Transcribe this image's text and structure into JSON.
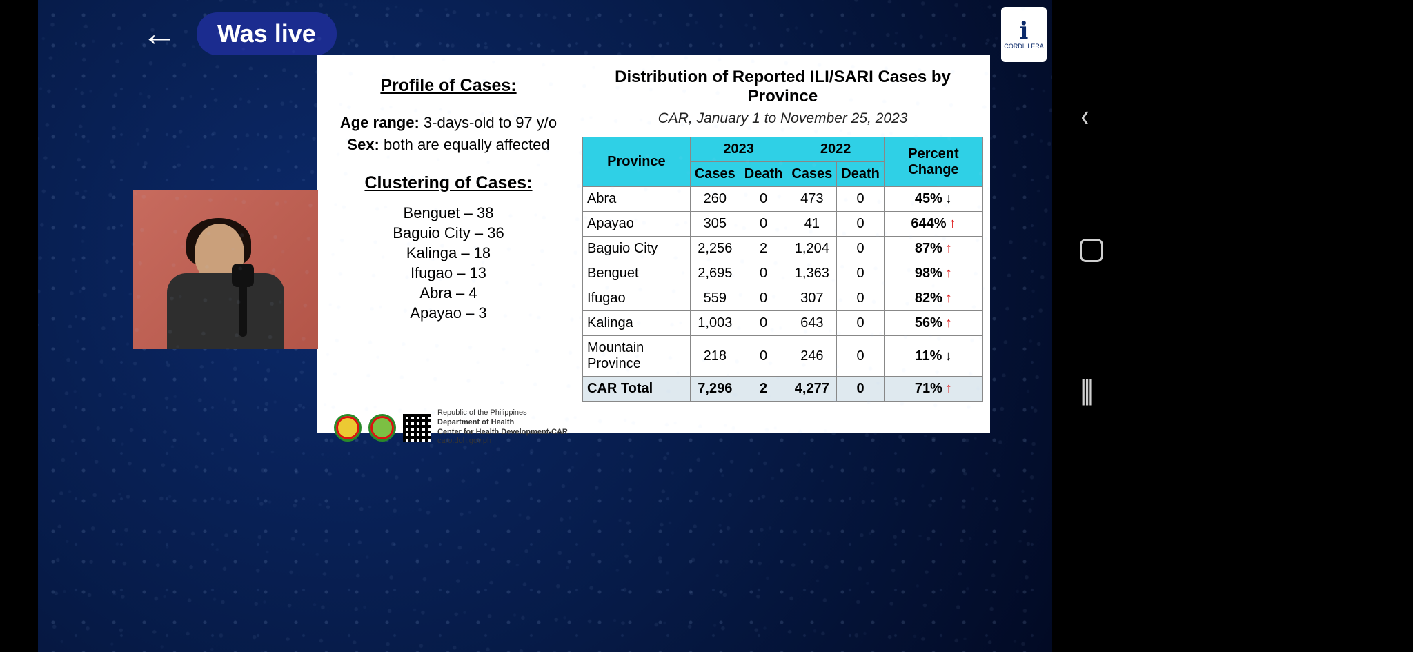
{
  "nav": {
    "live_label": "Was live"
  },
  "logo": {
    "label": "CORDILLERA"
  },
  "slide": {
    "profile": {
      "heading": "Profile of Cases:",
      "age_label": "Age range:",
      "age_value": "3-days-old to 97 y/o",
      "sex_label": "Sex:",
      "sex_value": "both are equally affected"
    },
    "clustering": {
      "heading": "Clustering of Cases:",
      "items": [
        "Benguet – 38",
        "Baguio City – 36",
        "Kalinga – 18",
        "Ifugao – 13",
        "Abra – 4",
        "Apayao – 3"
      ]
    },
    "distribution": {
      "title": "Distribution of Reported ILI/SARI Cases by Province",
      "subtitle": "CAR, January 1 to November 25, 2023",
      "header": {
        "province": "Province",
        "y2023": "2023",
        "y2022": "2022",
        "cases": "Cases",
        "death": "Death",
        "pct": "Percent Change"
      },
      "rows": [
        {
          "province": "Abra",
          "c23": "260",
          "d23": "0",
          "c22": "473",
          "d22": "0",
          "pct": "45%",
          "dir": "down"
        },
        {
          "province": "Apayao",
          "c23": "305",
          "d23": "0",
          "c22": "41",
          "d22": "0",
          "pct": "644%",
          "dir": "up"
        },
        {
          "province": "Baguio City",
          "c23": "2,256",
          "d23": "2",
          "c22": "1,204",
          "d22": "0",
          "pct": "87%",
          "dir": "up"
        },
        {
          "province": "Benguet",
          "c23": "2,695",
          "d23": "0",
          "c22": "1,363",
          "d22": "0",
          "pct": "98%",
          "dir": "up"
        },
        {
          "province": "Ifugao",
          "c23": "559",
          "d23": "0",
          "c22": "307",
          "d22": "0",
          "pct": "82%",
          "dir": "up"
        },
        {
          "province": "Kalinga",
          "c23": "1,003",
          "d23": "0",
          "c22": "643",
          "d22": "0",
          "pct": "56%",
          "dir": "up"
        },
        {
          "province": "Mountain Province",
          "c23": "218",
          "d23": "0",
          "c22": "246",
          "d22": "0",
          "pct": "11%",
          "dir": "down"
        }
      ],
      "total": {
        "province": "CAR Total",
        "c23": "7,296",
        "d23": "2",
        "c22": "4,277",
        "d22": "0",
        "pct": "71%",
        "dir": "up"
      }
    },
    "footer": {
      "line1": "Republic of the Philippines",
      "line2": "Department of Health",
      "line3": "Center for Health Development-CAR",
      "line4": "caro.doh.gov.ph"
    }
  },
  "style": {
    "header_bg": "#2fd0e6",
    "arrow_up_color": "#d11",
    "arrow_down_color": "#000"
  }
}
